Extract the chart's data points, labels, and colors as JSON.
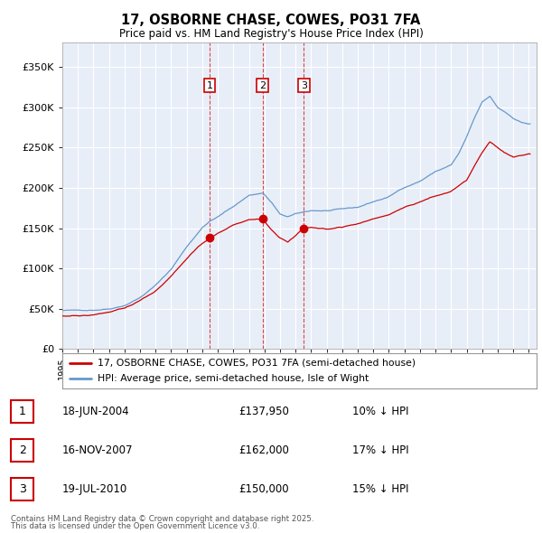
{
  "title": "17, OSBORNE CHASE, COWES, PO31 7FA",
  "subtitle": "Price paid vs. HM Land Registry's House Price Index (HPI)",
  "hpi_label": "HPI: Average price, semi-detached house, Isle of Wight",
  "property_label": "17, OSBORNE CHASE, COWES, PO31 7FA (semi-detached house)",
  "footer_line1": "Contains HM Land Registry data © Crown copyright and database right 2025.",
  "footer_line2": "This data is licensed under the Open Government Licence v3.0.",
  "transactions": [
    {
      "num": 1,
      "date": "18-JUN-2004",
      "price": 137950,
      "pct": "10%",
      "dir": "↓"
    },
    {
      "num": 2,
      "date": "16-NOV-2007",
      "price": 162000,
      "pct": "17%",
      "dir": "↓"
    },
    {
      "num": 3,
      "date": "19-JUL-2010",
      "price": 150000,
      "pct": "15%",
      "dir": "↓"
    }
  ],
  "transaction_dates_dec": [
    2004.46,
    2007.88,
    2010.54
  ],
  "transaction_prices": [
    137950,
    162000,
    150000
  ],
  "ylim": [
    0,
    380000
  ],
  "yticks": [
    0,
    50000,
    100000,
    150000,
    200000,
    250000,
    300000,
    350000
  ],
  "ytick_labels": [
    "£0",
    "£50K",
    "£100K",
    "£150K",
    "£200K",
    "£250K",
    "£300K",
    "£350K"
  ],
  "hpi_color": "#6699cc",
  "property_color": "#cc0000",
  "vline_color": "#dd3333",
  "plot_bg": "#e8eef8",
  "grid_color": "#ffffff",
  "transaction_box_color": "#cc0000",
  "fig_bg": "#ffffff",
  "hpi_anchors_t": [
    1995.0,
    1996.0,
    1997.0,
    1998.0,
    1999.0,
    2000.0,
    2001.0,
    2002.0,
    2003.0,
    2004.0,
    2004.5,
    2005.0,
    2006.0,
    2007.0,
    2007.9,
    2008.5,
    2009.0,
    2009.5,
    2010.0,
    2010.5,
    2011.0,
    2012.0,
    2013.0,
    2014.0,
    2015.0,
    2016.0,
    2017.0,
    2018.0,
    2019.0,
    2020.0,
    2020.5,
    2021.0,
    2021.5,
    2022.0,
    2022.5,
    2023.0,
    2023.5,
    2024.0,
    2024.5,
    2025.0
  ],
  "hpi_anchors_v": [
    47000,
    47000,
    48000,
    50000,
    55000,
    65000,
    80000,
    100000,
    128000,
    152000,
    160000,
    165000,
    178000,
    192000,
    195000,
    182000,
    168000,
    165000,
    168000,
    170000,
    172000,
    172000,
    173000,
    175000,
    182000,
    188000,
    200000,
    208000,
    220000,
    228000,
    242000,
    262000,
    285000,
    305000,
    312000,
    298000,
    292000,
    285000,
    280000,
    278000
  ],
  "prop_anchors_t": [
    1995.0,
    1996.0,
    1997.0,
    1998.0,
    1999.0,
    2000.0,
    2001.0,
    2002.0,
    2003.0,
    2004.0,
    2004.46,
    2005.0,
    2006.0,
    2007.0,
    2007.88,
    2008.5,
    2009.0,
    2009.5,
    2010.0,
    2010.54,
    2011.0,
    2012.0,
    2013.0,
    2014.0,
    2015.0,
    2016.0,
    2017.0,
    2018.0,
    2019.0,
    2020.0,
    2021.0,
    2022.0,
    2022.5,
    2023.0,
    2023.5,
    2024.0,
    2024.5,
    2025.0
  ],
  "prop_anchors_v": [
    42000,
    42000,
    43000,
    46000,
    50000,
    60000,
    72000,
    90000,
    112000,
    132000,
    137950,
    145000,
    155000,
    162000,
    162000,
    148000,
    138000,
    132000,
    140000,
    150000,
    150000,
    148000,
    150000,
    155000,
    160000,
    165000,
    175000,
    182000,
    190000,
    196000,
    210000,
    245000,
    258000,
    250000,
    244000,
    238000,
    240000,
    242000
  ]
}
